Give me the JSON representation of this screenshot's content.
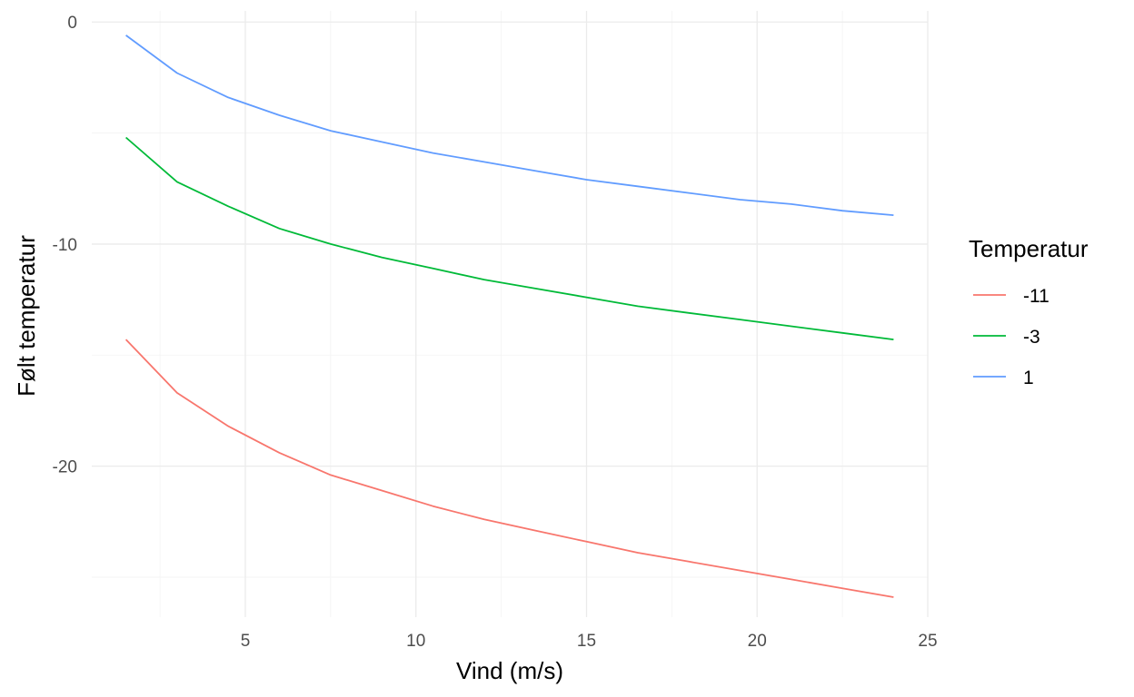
{
  "chart_data": {
    "type": "line",
    "title": "",
    "xlabel": "Vind (m/s)",
    "ylabel": "Følt temperatur",
    "xlim": [
      0.5,
      25
    ],
    "ylim": [
      -26.8,
      0.5
    ],
    "x_ticks": [
      5,
      10,
      15,
      20,
      25
    ],
    "y_ticks": [
      0,
      -10,
      -20
    ],
    "grid": true,
    "legend": {
      "title": "Temperatur",
      "position": "right"
    },
    "x": [
      1.5,
      3,
      4.5,
      6,
      7.5,
      9,
      10.5,
      12,
      13.5,
      15,
      16.5,
      18,
      19.5,
      21,
      22.5,
      24
    ],
    "series": [
      {
        "name": "-11",
        "color": "#F8766D",
        "values": [
          -14.3,
          -16.7,
          -18.2,
          -19.4,
          -20.4,
          -21.1,
          -21.8,
          -22.4,
          -22.9,
          -23.4,
          -23.9,
          -24.3,
          -24.7,
          -25.1,
          -25.5,
          -25.9
        ]
      },
      {
        "name": "-3",
        "color": "#00BA38",
        "values": [
          -5.2,
          -7.2,
          -8.3,
          -9.3,
          -10.0,
          -10.6,
          -11.1,
          -11.6,
          -12.0,
          -12.4,
          -12.8,
          -13.1,
          -13.4,
          -13.7,
          -14.0,
          -14.3
        ]
      },
      {
        "name": "1",
        "color": "#619CFF",
        "values": [
          -0.6,
          -2.3,
          -3.4,
          -4.2,
          -4.9,
          -5.4,
          -5.9,
          -6.3,
          -6.7,
          -7.1,
          -7.4,
          -7.7,
          -8.0,
          -8.2,
          -8.5,
          -8.7
        ]
      }
    ]
  }
}
